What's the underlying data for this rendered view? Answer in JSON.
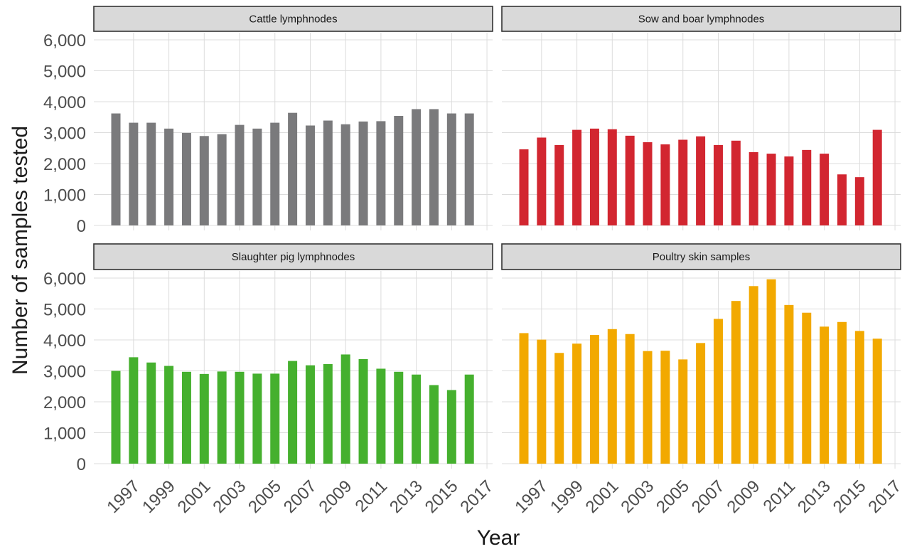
{
  "chart_data": {
    "type": "bar",
    "xlabel": "Year",
    "ylabel": "Number of samples tested",
    "ylim": [
      0,
      6000
    ],
    "y_ticks": [
      "0",
      "1,000",
      "2,000",
      "3,000",
      "4,000",
      "5,000",
      "6,000"
    ],
    "x_tick_labels": [
      "1997",
      "1999",
      "2001",
      "2003",
      "2005",
      "2007",
      "2009",
      "2011",
      "2013",
      "2015",
      "2017"
    ],
    "grid": true,
    "legend": "none",
    "categories": [
      "1996",
      "1997",
      "1998",
      "1999",
      "2000",
      "2001",
      "2002",
      "2003",
      "2004",
      "2005",
      "2006",
      "2007",
      "2008",
      "2009",
      "2010",
      "2011",
      "2012",
      "2013",
      "2014",
      "2015",
      "2016",
      "2017"
    ],
    "panels": [
      {
        "title": "Cattle lymphnodes",
        "color": "#7a7a7c",
        "values": [
          3620,
          3320,
          3320,
          3130,
          2990,
          2890,
          2950,
          3250,
          3130,
          3320,
          3640,
          3230,
          3390,
          3270,
          3360,
          3370,
          3540,
          3760,
          3760,
          3620,
          3620,
          null
        ]
      },
      {
        "title": "Sow and boar lymphnodes",
        "color": "#d22630",
        "values": [
          2460,
          2840,
          2600,
          3090,
          3130,
          3110,
          2900,
          2690,
          2620,
          2770,
          2880,
          2600,
          2740,
          2370,
          2320,
          2230,
          2440,
          2320,
          1650,
          1560,
          3090,
          null
        ]
      },
      {
        "title": "Slaughter pig lymphnodes",
        "color": "#45b02e",
        "values": [
          3000,
          3440,
          3270,
          3160,
          2970,
          2900,
          2980,
          2970,
          2910,
          2910,
          3320,
          3180,
          3220,
          3530,
          3380,
          3070,
          2970,
          2880,
          2540,
          2380,
          2880,
          null
        ]
      },
      {
        "title": "Poultry skin samples",
        "color": "#f2a900",
        "values": [
          4220,
          4010,
          3580,
          3880,
          4160,
          4350,
          4190,
          3640,
          3650,
          3370,
          3900,
          4680,
          5260,
          5740,
          5960,
          5130,
          4880,
          4430,
          4580,
          4290,
          4040,
          null
        ]
      }
    ]
  }
}
